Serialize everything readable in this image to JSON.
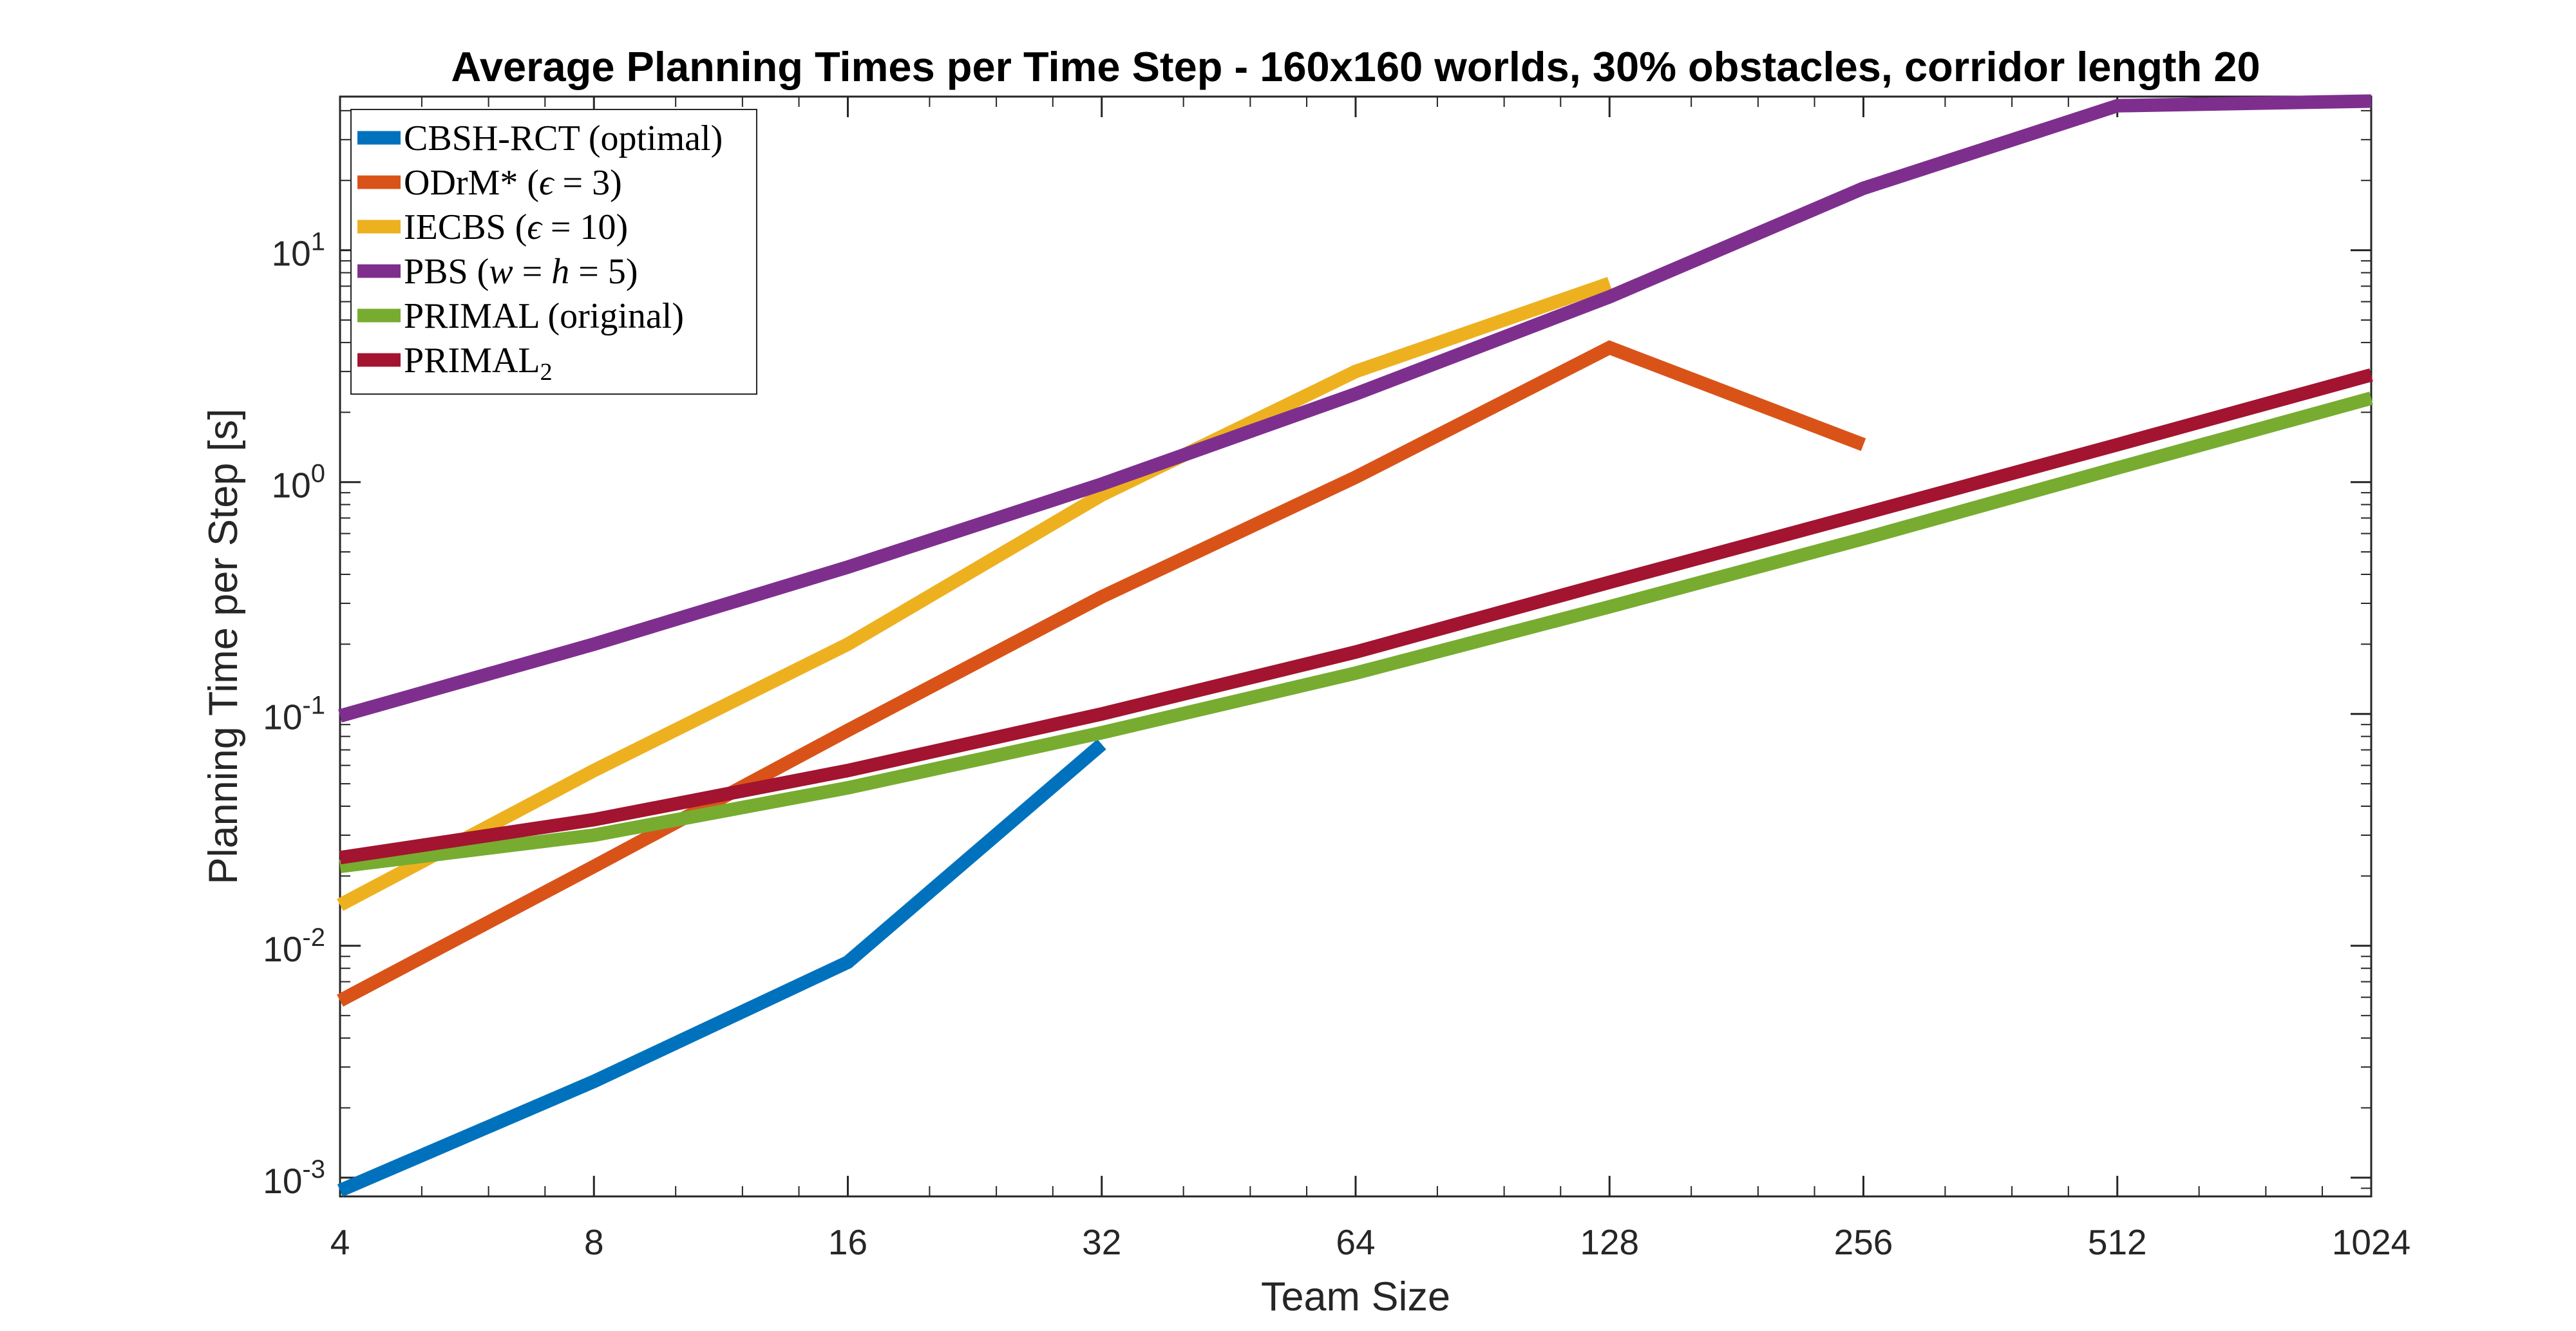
{
  "chart_data": {
    "type": "line",
    "title": "Average Planning Times per Time Step - 160x160 worlds, 30% obstacles, corridor length 20",
    "xlabel": "Team Size",
    "ylabel": "Planning Time per Step [s]",
    "x_scale": "log2",
    "y_scale": "log10",
    "xlim": [
      4,
      1024
    ],
    "ylim": [
      0.00083,
      46
    ],
    "x_ticks": [
      4,
      8,
      16,
      32,
      64,
      128,
      256,
      512,
      1024
    ],
    "x_tick_labels": [
      "4",
      "8",
      "16",
      "32",
      "64",
      "128",
      "256",
      "512",
      "1024"
    ],
    "y_ticks": [
      {
        "value": 0.001,
        "base": "10",
        "exp": "-3"
      },
      {
        "value": 0.01,
        "base": "10",
        "exp": "-2"
      },
      {
        "value": 0.1,
        "base": "10",
        "exp": "-1"
      },
      {
        "value": 1,
        "base": "10",
        "exp": "0"
      },
      {
        "value": 10,
        "base": "10",
        "exp": "1"
      }
    ],
    "grid": false,
    "legend_position": "top-left",
    "series": [
      {
        "name": "CBSH-RCT (optimal)",
        "color": "#0072BD",
        "x": [
          4,
          8,
          16,
          32
        ],
        "y": [
          0.00088,
          0.0026,
          0.0085,
          0.074
        ]
      },
      {
        "name": "ODrM* (ϵ = 3)",
        "color": "#D95319",
        "x": [
          4,
          8,
          16,
          32,
          64,
          128,
          256
        ],
        "y": [
          0.0058,
          0.022,
          0.085,
          0.32,
          1.05,
          3.8,
          1.45
        ]
      },
      {
        "name": "IECBS (ϵ = 10)",
        "color": "#EDB120",
        "x": [
          4,
          8,
          16,
          32,
          64,
          128
        ],
        "y": [
          0.015,
          0.057,
          0.2,
          0.88,
          3.0,
          7.2
        ]
      },
      {
        "name": "PBS (w = h = 5)",
        "color": "#7E2F8E",
        "x": [
          4,
          8,
          16,
          32,
          64,
          128,
          256,
          512,
          1024
        ],
        "y": [
          0.098,
          0.2,
          0.43,
          0.98,
          2.4,
          6.3,
          18.5,
          42,
          44
        ]
      },
      {
        "name": "PRIMAL (original)",
        "color": "#77AC30",
        "x": [
          4,
          8,
          16,
          32,
          64,
          128,
          256,
          512,
          1024
        ],
        "y": [
          0.022,
          0.03,
          0.048,
          0.083,
          0.15,
          0.29,
          0.57,
          1.15,
          2.3
        ]
      },
      {
        "name": "PRIMAL2",
        "color": "#A2142F",
        "x": [
          4,
          8,
          16,
          32,
          64,
          128,
          256,
          512,
          1024
        ],
        "y": [
          0.024,
          0.035,
          0.057,
          0.1,
          0.185,
          0.37,
          0.73,
          1.45,
          2.9
        ]
      }
    ],
    "legend_entries": [
      {
        "text": "CBSH-RCT (optimal)"
      },
      {
        "pre": "ODrM* (",
        "var": "ϵ",
        "post": " = 3)"
      },
      {
        "pre": "IECBS (",
        "var": "ϵ",
        "post": " = 10)"
      },
      {
        "pre": "PBS (",
        "var": "w",
        "mid": " = ",
        "var2": "h",
        "post": " = 5)"
      },
      {
        "text": "PRIMAL (original)"
      },
      {
        "pre": "PRIMAL",
        "sub": "2"
      }
    ]
  }
}
